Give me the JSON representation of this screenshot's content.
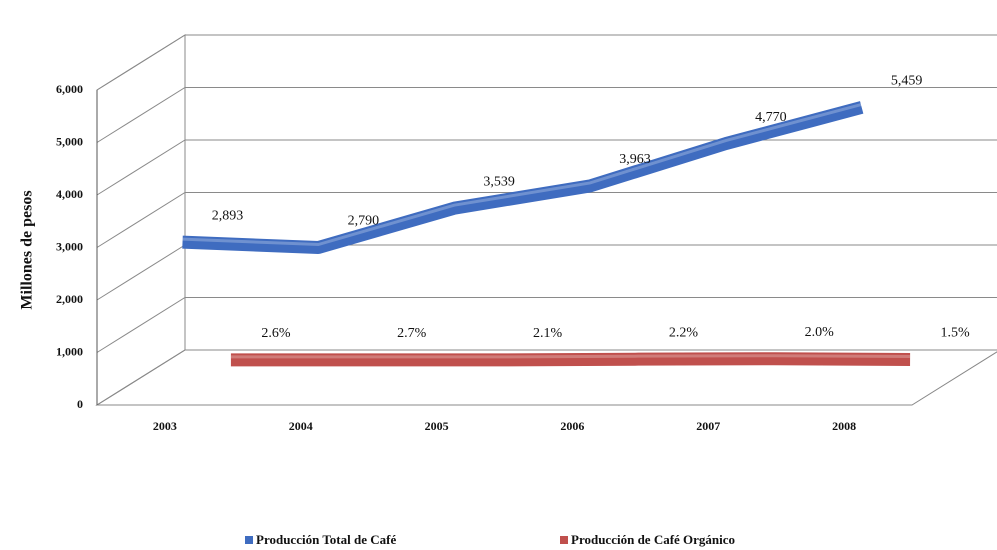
{
  "chart_data": {
    "type": "line3d",
    "y_label": "Millones de pesos",
    "categories": [
      "2003",
      "2004",
      "2005",
      "2006",
      "2007",
      "2008"
    ],
    "series": [
      {
        "name": "Producción Total de Café",
        "color": "#3f6cc0",
        "values": [
          2893,
          2790,
          3539,
          3963,
          4770,
          5459
        ],
        "value_labels": [
          "2,893",
          "2,790",
          "3,539",
          "3,963",
          "4,770",
          "5,459"
        ]
      },
      {
        "name": "Producción de Café Orgánico",
        "color": "#c0504d",
        "values": [
          75,
          75,
          74,
          87,
          95,
          82
        ],
        "value_labels": [
          "2.6%",
          "2.7%",
          "2.1%",
          "2.2%",
          "2.0%",
          "1.5%"
        ]
      }
    ],
    "ylim": [
      0,
      6000
    ],
    "yticks": [
      0,
      {
        "value": 1000,
        "label": "1,000"
      },
      {
        "value": 2000,
        "label": "2,000"
      },
      {
        "value": 3000,
        "label": "3,000"
      },
      {
        "value": 4000,
        "label": "4,000"
      },
      {
        "value": 5000,
        "label": "5,000"
      },
      {
        "value": 6000,
        "label": "6,000"
      }
    ],
    "grid": true,
    "legend": "bottom"
  }
}
